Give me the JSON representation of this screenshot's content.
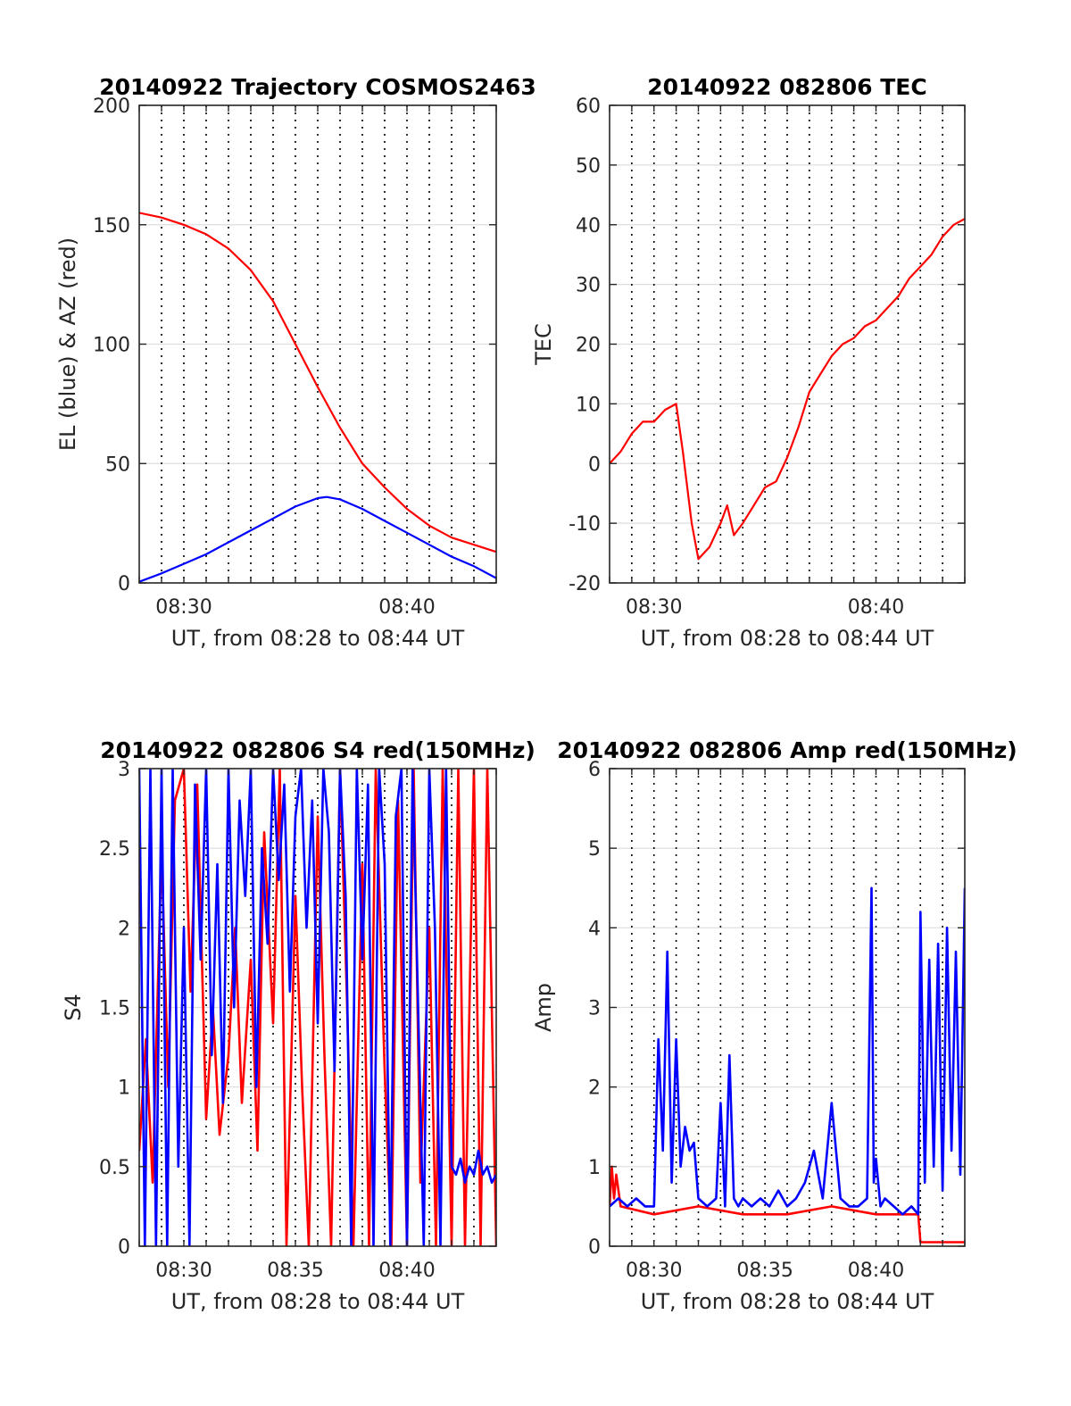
{
  "chart_data": [
    {
      "type": "line",
      "title": "20140922 Trajectory COSMOS2463",
      "xlabel": "UT, from 08:28 to 08:44 UT",
      "ylabel": "EL (blue) & AZ (red)",
      "xlim": [
        28,
        44
      ],
      "ylim": [
        0,
        200
      ],
      "yticks": [
        "0",
        "50",
        "100",
        "150",
        "200"
      ],
      "xticks": [
        {
          "value": 30,
          "label": "08:30"
        },
        {
          "value": 40,
          "label": "08:40"
        }
      ],
      "grid": "dotted vertical every 1 min, light horizontal",
      "series": [
        {
          "color": "#ff0000",
          "x": [
            28,
            29,
            30,
            31,
            32,
            33,
            34,
            35,
            36,
            37,
            38,
            39,
            40,
            41,
            42,
            43,
            44
          ],
          "values": [
            155,
            153,
            150,
            146,
            140,
            131,
            118,
            100,
            82,
            65,
            50,
            40,
            31,
            24,
            19,
            16,
            13
          ]
        },
        {
          "color": "#0000ff",
          "x": [
            28,
            29,
            30,
            31,
            32,
            33,
            34,
            35,
            36,
            36.4,
            37,
            38,
            39,
            40,
            41,
            42,
            43,
            44
          ],
          "values": [
            0.5,
            4,
            8,
            12,
            17,
            22,
            27,
            32,
            35.5,
            36,
            35,
            31,
            26,
            21,
            16,
            11,
            7,
            2
          ]
        }
      ]
    },
    {
      "type": "line",
      "title": "20140922 082806 TEC",
      "xlabel": "UT, from 08:28 to 08:44 UT",
      "ylabel": "TEC",
      "xlim": [
        28,
        44
      ],
      "ylim": [
        -20,
        60
      ],
      "yticks": [
        "-20",
        "-10",
        "0",
        "10",
        "20",
        "30",
        "40",
        "50",
        "60"
      ],
      "xticks": [
        {
          "value": 30,
          "label": "08:30"
        },
        {
          "value": 40,
          "label": "08:40"
        }
      ],
      "series": [
        {
          "color": "#ff0000",
          "x": [
            28,
            28.5,
            29,
            29.5,
            30,
            30.5,
            31,
            31.3,
            31.7,
            32,
            32.5,
            33,
            33.3,
            33.6,
            34,
            34.5,
            35,
            35.5,
            36,
            36.5,
            37,
            37.5,
            38,
            38.5,
            39,
            39.5,
            40,
            40.5,
            41,
            41.5,
            42,
            42.5,
            43,
            43.5,
            44
          ],
          "values": [
            0,
            2,
            5,
            7,
            7,
            9,
            10,
            2,
            -10,
            -16,
            -14,
            -10,
            -7,
            -12,
            -10,
            -7,
            -4,
            -3,
            1,
            6,
            12,
            15,
            18,
            20,
            21,
            23,
            24,
            26,
            28,
            31,
            33,
            35,
            38,
            40,
            41
          ]
        }
      ]
    },
    {
      "type": "line",
      "title": "20140922 082806 S4 red(150MHz)",
      "xlabel": "UT, from 08:28 to 08:44 UT",
      "ylabel": "S4",
      "xlim": [
        28,
        44
      ],
      "ylim": [
        0,
        3
      ],
      "yticks": [
        "0",
        "0.5",
        "1",
        "1.5",
        "2",
        "2.5",
        "3"
      ],
      "xticks": [
        {
          "value": 30,
          "label": "08:30"
        },
        {
          "value": 35,
          "label": "08:35"
        },
        {
          "value": 40,
          "label": "08:40"
        }
      ],
      "series": [
        {
          "color": "#ff0000",
          "x": [
            28.0,
            28.3,
            28.6,
            29.0,
            29.3,
            29.6,
            30.0,
            30.3,
            30.6,
            31.0,
            31.3,
            31.6,
            32.0,
            32.3,
            32.6,
            33.0,
            33.3,
            33.6,
            34.0,
            34.3,
            34.6,
            35.0,
            35.3,
            35.6,
            36.0,
            36.3,
            36.6,
            37.0,
            37.3,
            37.6,
            38.0,
            38.3,
            38.6,
            39.0,
            39.3,
            39.6,
            40.0,
            40.3,
            40.6,
            41.0,
            41.3,
            41.6,
            42.0,
            42.3,
            42.6,
            43.0,
            43.3,
            43.6,
            44.0
          ],
          "values": [
            0.6,
            1.3,
            0.4,
            2.5,
            1.0,
            2.8,
            3.0,
            1.6,
            2.9,
            0.8,
            1.5,
            0.7,
            1.2,
            2.0,
            0.9,
            1.8,
            0.6,
            2.6,
            1.4,
            3.0,
            0.0,
            2.2,
            1.0,
            0.0,
            2.7,
            1.2,
            0.0,
            3.0,
            1.6,
            0.0,
            2.4,
            0.0,
            3.0,
            1.1,
            0.0,
            2.8,
            0.0,
            3.0,
            0.4,
            2.0,
            0.0,
            3.0,
            0.0,
            3.0,
            0.0,
            3.0,
            0.0,
            3.0,
            0.0
          ]
        },
        {
          "color": "#0000ff",
          "x": [
            28.0,
            28.25,
            28.5,
            28.75,
            29.0,
            29.25,
            29.5,
            29.75,
            30.0,
            30.25,
            30.5,
            30.75,
            31.0,
            31.25,
            31.5,
            31.75,
            32.0,
            32.25,
            32.5,
            32.75,
            33.0,
            33.25,
            33.5,
            33.75,
            34.0,
            34.25,
            34.5,
            34.75,
            35.0,
            35.25,
            35.5,
            35.75,
            36.0,
            36.25,
            36.5,
            36.75,
            37.0,
            37.25,
            37.5,
            37.75,
            38.0,
            38.25,
            38.5,
            38.75,
            39.0,
            39.25,
            39.5,
            39.75,
            40.0,
            40.25,
            40.5,
            40.75,
            41.0,
            41.25,
            41.5,
            41.75,
            42.0,
            42.2,
            42.4,
            42.6,
            42.8,
            43.0,
            43.2,
            43.4,
            43.6,
            43.8,
            44.0
          ],
          "values": [
            3.0,
            0.0,
            3.0,
            0.0,
            3.0,
            0.0,
            3.0,
            0.5,
            2.0,
            0.0,
            2.9,
            1.8,
            3.0,
            1.2,
            2.4,
            0.9,
            3.0,
            1.5,
            2.8,
            2.2,
            3.0,
            1.0,
            2.5,
            1.9,
            3.0,
            2.3,
            2.9,
            1.6,
            2.7,
            3.0,
            2.0,
            2.8,
            1.4,
            3.0,
            2.6,
            1.1,
            3.0,
            2.2,
            0.0,
            3.0,
            1.8,
            2.9,
            0.0,
            3.0,
            2.4,
            0.0,
            2.7,
            3.0,
            0.0,
            3.0,
            1.5,
            0.0,
            3.0,
            2.0,
            0.0,
            3.0,
            0.5,
            0.45,
            0.55,
            0.4,
            0.5,
            0.45,
            0.6,
            0.45,
            0.5,
            0.4,
            0.45
          ]
        }
      ]
    },
    {
      "type": "line",
      "title": "20140922 082806 Amp red(150MHz)",
      "xlabel": "UT, from 08:28 to 08:44 UT",
      "ylabel": "Amp",
      "xlim": [
        28,
        44
      ],
      "ylim": [
        0,
        6
      ],
      "yticks": [
        "0",
        "1",
        "2",
        "3",
        "4",
        "5",
        "6"
      ],
      "xticks": [
        {
          "value": 30,
          "label": "08:30"
        },
        {
          "value": 35,
          "label": "08:35"
        },
        {
          "value": 40,
          "label": "08:40"
        }
      ],
      "series": [
        {
          "color": "#ff0000",
          "x": [
            28.0,
            28.1,
            28.2,
            28.3,
            28.5,
            30.0,
            32.0,
            34.0,
            36.0,
            38.0,
            40.0,
            41.9,
            42.0,
            42.5,
            43.0,
            43.5,
            44.0
          ],
          "values": [
            0.5,
            1.0,
            0.6,
            0.9,
            0.5,
            0.4,
            0.5,
            0.4,
            0.4,
            0.5,
            0.4,
            0.4,
            0.05,
            0.05,
            0.05,
            0.05,
            0.05
          ]
        },
        {
          "color": "#0000ff",
          "x": [
            28.0,
            28.4,
            28.8,
            29.2,
            29.6,
            30.0,
            30.2,
            30.4,
            30.6,
            30.8,
            31.0,
            31.2,
            31.4,
            31.6,
            31.8,
            32.0,
            32.4,
            32.8,
            33.0,
            33.2,
            33.4,
            33.6,
            33.8,
            34.0,
            34.4,
            34.8,
            35.2,
            35.6,
            36.0,
            36.4,
            36.8,
            37.2,
            37.6,
            38.0,
            38.4,
            38.8,
            39.2,
            39.6,
            39.8,
            39.9,
            40.0,
            40.2,
            40.4,
            40.8,
            41.2,
            41.6,
            41.9,
            42.0,
            42.2,
            42.4,
            42.6,
            42.8,
            43.0,
            43.2,
            43.4,
            43.6,
            43.8,
            44.0
          ],
          "values": [
            0.5,
            0.6,
            0.5,
            0.6,
            0.5,
            0.5,
            2.6,
            1.2,
            3.7,
            0.8,
            2.6,
            1.0,
            1.5,
            1.2,
            1.3,
            0.6,
            0.5,
            0.6,
            1.8,
            0.5,
            2.4,
            0.6,
            0.5,
            0.6,
            0.5,
            0.6,
            0.5,
            0.7,
            0.5,
            0.6,
            0.8,
            1.2,
            0.6,
            1.8,
            0.6,
            0.5,
            0.5,
            0.6,
            4.5,
            0.8,
            1.1,
            0.5,
            0.6,
            0.5,
            0.4,
            0.5,
            0.4,
            4.2,
            0.8,
            3.6,
            1.0,
            3.8,
            0.7,
            4.0,
            1.2,
            3.7,
            0.9,
            4.5
          ]
        }
      ]
    }
  ]
}
